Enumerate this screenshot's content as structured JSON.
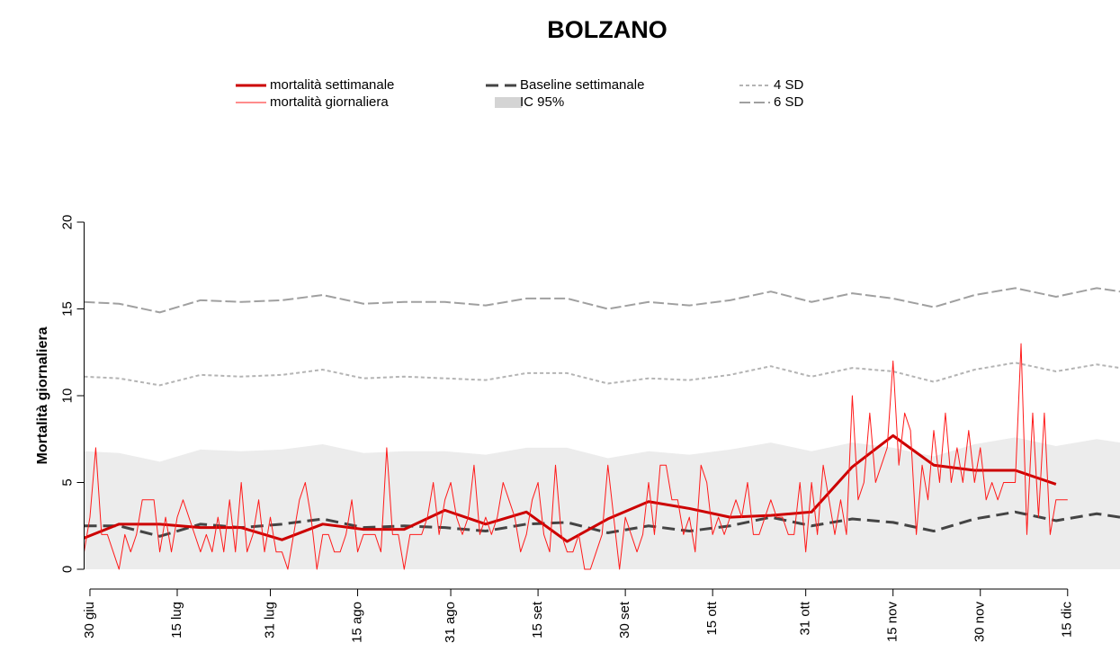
{
  "chart_data": {
    "type": "line",
    "title": "BOLZANO",
    "y_label": "Mortalità giornaliera",
    "xlim": [
      -1,
      177
    ],
    "ylim": [
      0,
      20
    ],
    "yticks": [
      0,
      5,
      10,
      15,
      20
    ],
    "xticks": [
      {
        "value": 0,
        "label": "30 giu"
      },
      {
        "value": 15,
        "label": "15 lug"
      },
      {
        "value": 31,
        "label": "31 lug"
      },
      {
        "value": 46,
        "label": "15 ago"
      },
      {
        "value": 62,
        "label": "31 ago"
      },
      {
        "value": 77,
        "label": "15 set"
      },
      {
        "value": 92,
        "label": "30 set"
      },
      {
        "value": 107,
        "label": "15 ott"
      },
      {
        "value": 123,
        "label": "31 ott"
      },
      {
        "value": 138,
        "label": "15 nov"
      },
      {
        "value": 153,
        "label": "30 nov"
      },
      {
        "value": 168,
        "label": "15 dic"
      }
    ],
    "x": [
      -1,
      5,
      12,
      19,
      26,
      33,
      40,
      47,
      54,
      61,
      68,
      75,
      82,
      89,
      96,
      103,
      110,
      117,
      124,
      131,
      138,
      145,
      152,
      159,
      166,
      173,
      177
    ],
    "series": [
      {
        "name": "IC 95%",
        "kind": "area",
        "color": "#ececec",
        "values": [
          6.8,
          6.7,
          6.2,
          6.9,
          6.8,
          6.9,
          7.2,
          6.7,
          6.8,
          6.8,
          6.6,
          7.0,
          7.0,
          6.4,
          6.8,
          6.6,
          6.9,
          7.3,
          6.8,
          7.3,
          7.0,
          6.5,
          7.2,
          7.6,
          7.1,
          7.5,
          7.3
        ]
      },
      {
        "name": "6 SD",
        "kind": "line",
        "color": "#a0a0a0",
        "dash": "12 4",
        "width": 2,
        "values": [
          15.4,
          15.3,
          14.8,
          15.5,
          15.4,
          15.5,
          15.8,
          15.3,
          15.4,
          15.4,
          15.2,
          15.6,
          15.6,
          15.0,
          15.4,
          15.2,
          15.5,
          16.0,
          15.4,
          15.9,
          15.6,
          15.1,
          15.8,
          16.2,
          15.7,
          16.2,
          16.0
        ]
      },
      {
        "name": "4 SD",
        "kind": "line",
        "color": "#b4b4b4",
        "dash": "4 3",
        "width": 2,
        "values": [
          11.1,
          11.0,
          10.6,
          11.2,
          11.1,
          11.2,
          11.5,
          11.0,
          11.1,
          11.0,
          10.9,
          11.3,
          11.3,
          10.7,
          11.0,
          10.9,
          11.2,
          11.7,
          11.1,
          11.6,
          11.4,
          10.8,
          11.5,
          11.9,
          11.4,
          11.8,
          11.6
        ]
      },
      {
        "name": "Baseline settimanale",
        "kind": "line",
        "color": "#444444",
        "dash": "14 7",
        "width": 3,
        "values": [
          2.5,
          2.5,
          1.9,
          2.6,
          2.4,
          2.6,
          2.9,
          2.4,
          2.5,
          2.4,
          2.2,
          2.6,
          2.7,
          2.1,
          2.5,
          2.2,
          2.5,
          3.0,
          2.5,
          2.9,
          2.7,
          2.2,
          2.9,
          3.3,
          2.8,
          3.2,
          3.0
        ]
      },
      {
        "name": "mortalità settimanale",
        "kind": "line",
        "color": "#cc0000",
        "width": 3,
        "values": [
          1.8,
          2.6,
          2.6,
          2.4,
          2.4,
          1.7,
          2.6,
          2.3,
          2.3,
          3.4,
          2.6,
          3.3,
          1.6,
          2.9,
          3.9,
          3.5,
          3.0,
          3.1,
          3.3,
          5.9,
          7.7,
          6.0,
          5.7,
          5.7,
          4.9,
          null,
          null
        ]
      },
      {
        "name": "mortalità giornaliera",
        "kind": "line",
        "color": "#ff1a1a",
        "width": 1,
        "x": [
          -1,
          0,
          1,
          2,
          3,
          4,
          5,
          6,
          7,
          8,
          9,
          10,
          11,
          12,
          13,
          14,
          15,
          16,
          17,
          18,
          19,
          20,
          21,
          22,
          23,
          24,
          25,
          26,
          27,
          28,
          29,
          30,
          31,
          32,
          33,
          34,
          35,
          36,
          37,
          38,
          39,
          40,
          41,
          42,
          43,
          44,
          45,
          46,
          47,
          48,
          49,
          50,
          51,
          52,
          53,
          54,
          55,
          56,
          57,
          58,
          59,
          60,
          61,
          62,
          63,
          64,
          65,
          66,
          67,
          68,
          69,
          70,
          71,
          72,
          73,
          74,
          75,
          76,
          77,
          78,
          79,
          80,
          81,
          82,
          83,
          84,
          85,
          86,
          87,
          88,
          89,
          90,
          91,
          92,
          93,
          94,
          95,
          96,
          97,
          98,
          99,
          100,
          101,
          102,
          103,
          104,
          105,
          106,
          107,
          108,
          109,
          110,
          111,
          112,
          113,
          114,
          115,
          116,
          117,
          118,
          119,
          120,
          121,
          122,
          123,
          124,
          125,
          126,
          127,
          128,
          129,
          130,
          131,
          132,
          133,
          134,
          135,
          136,
          137,
          138,
          139,
          140,
          141,
          142,
          143,
          144,
          145,
          146,
          147,
          148,
          149,
          150,
          151,
          152,
          153,
          154,
          155,
          156,
          157,
          158,
          159,
          160,
          161,
          162,
          163,
          164,
          165,
          166,
          167,
          168
        ],
        "values": [
          1,
          3,
          7,
          2,
          2,
          1,
          0,
          2,
          1,
          2,
          4,
          4,
          4,
          1,
          3,
          1,
          3,
          4,
          3,
          2,
          1,
          2,
          1,
          3,
          1,
          4,
          1,
          5,
          1,
          2,
          4,
          1,
          3,
          1,
          1,
          0,
          2,
          4,
          5,
          3,
          0,
          2,
          2,
          1,
          1,
          2,
          4,
          1,
          2,
          2,
          2,
          1,
          7,
          2,
          2,
          0,
          2,
          2,
          2,
          3,
          5,
          2,
          4,
          5,
          3,
          2,
          3,
          6,
          2,
          3,
          2,
          3,
          5,
          4,
          3,
          1,
          2,
          4,
          5,
          2,
          1,
          6,
          2,
          1,
          1,
          2,
          0,
          0,
          1,
          2,
          6,
          3,
          0,
          3,
          2,
          1,
          2,
          5,
          2,
          6,
          6,
          4,
          4,
          2,
          3,
          1,
          6,
          5,
          2,
          3,
          2,
          3,
          4,
          3,
          5,
          2,
          2,
          3,
          4,
          3,
          3,
          2,
          2,
          5,
          1,
          5,
          2,
          6,
          4,
          2,
          4,
          2,
          10,
          4,
          5,
          9,
          5,
          6,
          7,
          12,
          6,
          9,
          8,
          2,
          6,
          4,
          8,
          5,
          9,
          5,
          7,
          5,
          8,
          5,
          7,
          4,
          5,
          4,
          5,
          5,
          5,
          13,
          2,
          9,
          3,
          9,
          2,
          4,
          4,
          4
        ]
      }
    ]
  }
}
